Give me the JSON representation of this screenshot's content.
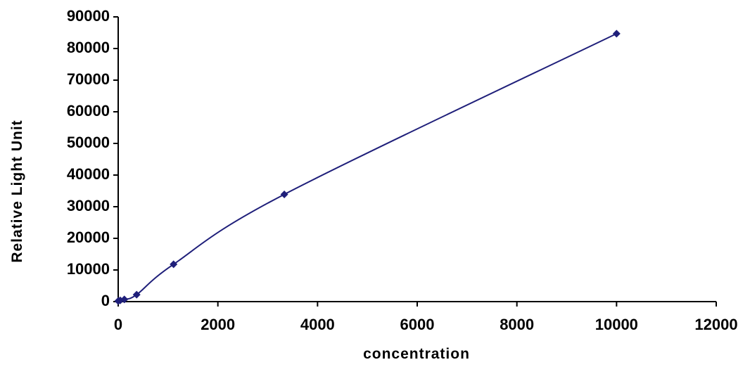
{
  "chart_data": {
    "type": "scatter",
    "title": "",
    "xlabel": "concentration",
    "ylabel": "Relative Light Unit",
    "xlim": [
      0,
      12000
    ],
    "ylim": [
      0,
      90000
    ],
    "x_ticks": [
      0,
      2000,
      4000,
      6000,
      8000,
      10000,
      12000
    ],
    "y_ticks": [
      0,
      10000,
      20000,
      30000,
      40000,
      50000,
      60000,
      70000,
      80000,
      90000
    ],
    "grid": false,
    "legend": "none",
    "series": [
      {
        "x": [
          0,
          41,
          123,
          370,
          1111,
          3333,
          10000
        ],
        "y": [
          200,
          400,
          700,
          2200,
          11800,
          33900,
          84700
        ],
        "color": "#1f1f7a",
        "marker": "diamond",
        "smooth": true
      }
    ]
  }
}
